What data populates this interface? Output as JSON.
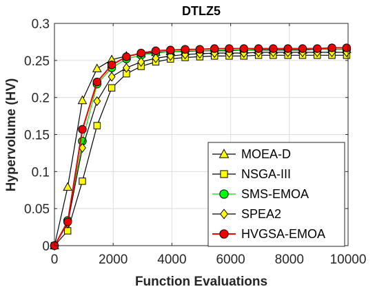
{
  "chart_data": {
    "type": "line",
    "title": "DTLZ5",
    "xlabel": "Function Evaluations",
    "ylabel": "Hypervolume (HV)",
    "xlim": [
      0,
      10000
    ],
    "ylim": [
      0,
      0.3
    ],
    "xticks": [
      0,
      2000,
      4000,
      6000,
      8000,
      10000
    ],
    "xtick_labels": [
      "0",
      "2000",
      "4000",
      "6000",
      "8000",
      "10000"
    ],
    "yticks": [
      0,
      0.05,
      0.1,
      0.15,
      0.2,
      0.25,
      0.3
    ],
    "ytick_labels": [
      "0",
      "0.05",
      "0.1",
      "0.15",
      "0.2",
      "0.25",
      "0.3"
    ],
    "grid": true,
    "legend_position": "bottom-right",
    "x": [
      0,
      450,
      950,
      1450,
      1950,
      2450,
      2950,
      3450,
      3950,
      4450,
      4950,
      5450,
      5950,
      6450,
      6950,
      7450,
      7950,
      8450,
      8950,
      9450,
      9950
    ],
    "series": [
      {
        "name": "MOEA-D",
        "marker": "triangle",
        "line_color": "#000000",
        "marker_fill": "#ffff00",
        "values": [
          0.0,
          0.079,
          0.196,
          0.239,
          0.251,
          0.256,
          0.259,
          0.261,
          0.262,
          0.262,
          0.263,
          0.263,
          0.263,
          0.264,
          0.264,
          0.264,
          0.264,
          0.264,
          0.265,
          0.265,
          0.265
        ]
      },
      {
        "name": "NSGA-III",
        "marker": "square",
        "line_color": "#000000",
        "marker_fill": "#ffff00",
        "values": [
          0.0,
          0.02,
          0.087,
          0.162,
          0.213,
          0.232,
          0.242,
          0.248,
          0.252,
          0.254,
          0.255,
          0.256,
          0.256,
          0.256,
          0.257,
          0.257,
          0.257,
          0.257,
          0.257,
          0.257,
          0.257
        ]
      },
      {
        "name": "SMS-EMOA",
        "marker": "circle",
        "line_color": "#00dd00",
        "marker_fill": "#00ff00",
        "values": [
          0.0,
          0.034,
          0.141,
          0.218,
          0.24,
          0.252,
          0.257,
          0.26,
          0.262,
          0.263,
          0.263,
          0.264,
          0.264,
          0.264,
          0.265,
          0.265,
          0.265,
          0.265,
          0.265,
          0.265,
          0.265
        ]
      },
      {
        "name": "SPEA2",
        "marker": "diamond",
        "line_color": "#000000",
        "marker_fill": "#ffff00",
        "values": [
          0.0,
          0.03,
          0.132,
          0.195,
          0.228,
          0.24,
          0.248,
          0.253,
          0.256,
          0.258,
          0.259,
          0.26,
          0.26,
          0.26,
          0.261,
          0.261,
          0.261,
          0.261,
          0.261,
          0.261,
          0.261
        ]
      },
      {
        "name": "HVGSA-EMOA",
        "marker": "circle",
        "line_color": "#ee0000",
        "marker_fill": "#ee0000",
        "values": [
          0.0,
          0.032,
          0.157,
          0.221,
          0.244,
          0.255,
          0.26,
          0.263,
          0.264,
          0.265,
          0.265,
          0.266,
          0.266,
          0.266,
          0.266,
          0.266,
          0.266,
          0.266,
          0.266,
          0.267,
          0.267
        ]
      }
    ]
  }
}
